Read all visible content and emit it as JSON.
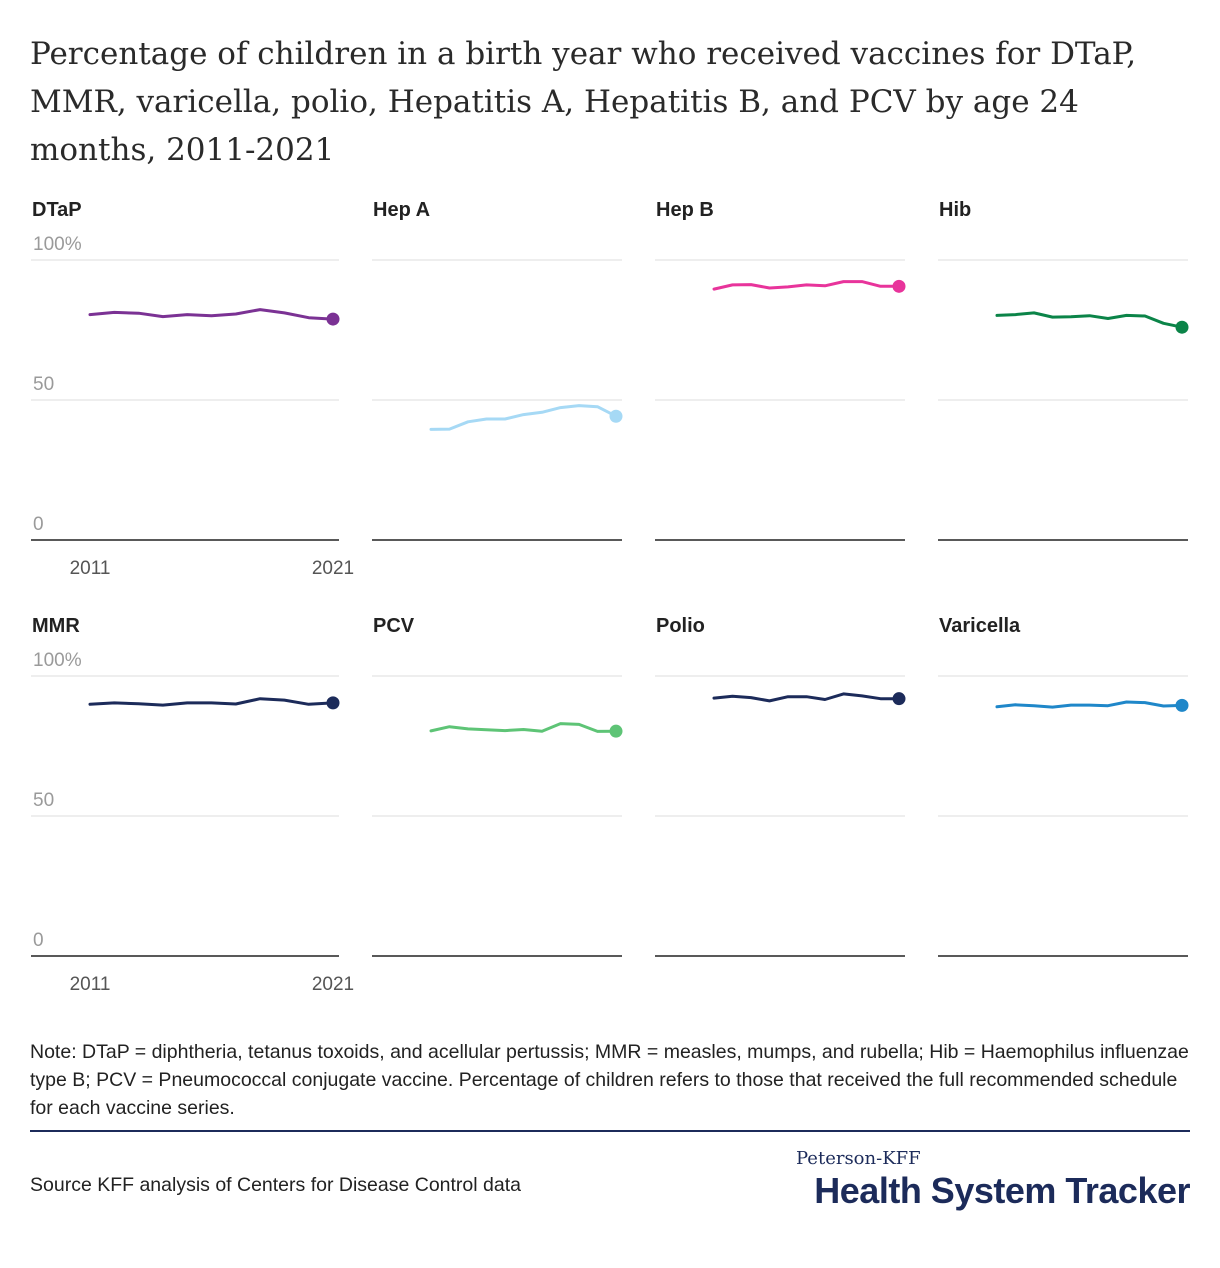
{
  "title": "Percentage of children in a birth year who received vaccines for DTaP, MMR, varicella, polio, Hepatitis A, Hepatitis B, and PCV by age 24 months, 2011-2021",
  "note": "Note: DTaP = diphtheria, tetanus toxoids, and acellular pertussis; MMR = measles, mumps, and rubella; Hib = Haemophilus influenzae type B; PCV = Pneumococcal conjugate vaccine. Percentage of children refers to those that received the full recommended schedule for each vaccine series.",
  "source": "Source KFF analysis of Centers for Disease Control data",
  "logo": {
    "top": "Peterson-KFF",
    "main": "Health System Tracker"
  },
  "chart_data": [
    {
      "type": "line",
      "title": "DTaP",
      "color": "#7b3294",
      "x": [
        2011,
        2012,
        2013,
        2014,
        2015,
        2016,
        2017,
        2018,
        2019,
        2020,
        2021
      ],
      "values": [
        80.5,
        81.3,
        81.0,
        79.8,
        80.5,
        80.1,
        80.7,
        82.3,
        81.1,
        79.4,
        78.9
      ],
      "ylim": [
        0,
        100
      ],
      "yticks": [
        "0",
        "50",
        "100%"
      ],
      "xticks": [
        "2011",
        "2021"
      ],
      "grid": true
    },
    {
      "type": "line",
      "title": "Hep A",
      "color": "#a6d9f5",
      "x": [
        2011,
        2012,
        2013,
        2014,
        2015,
        2016,
        2017,
        2018,
        2019,
        2020,
        2021
      ],
      "values": [
        39.5,
        39.6,
        42.2,
        43.2,
        43.2,
        44.8,
        45.6,
        47.3,
        48.0,
        47.6,
        44.2
      ],
      "ylim": [
        0,
        100
      ],
      "yticks": [
        "0",
        "50",
        "100%"
      ],
      "xticks": [
        "2011",
        "2021"
      ],
      "grid": true
    },
    {
      "type": "line",
      "title": "Hep B",
      "color": "#e8349b",
      "x": [
        2011,
        2012,
        2013,
        2014,
        2015,
        2016,
        2017,
        2018,
        2019,
        2020,
        2021
      ],
      "values": [
        89.6,
        91.1,
        91.2,
        90.0,
        90.4,
        91.1,
        90.8,
        92.3,
        92.3,
        90.6,
        90.6
      ],
      "ylim": [
        0,
        100
      ],
      "yticks": [
        "0",
        "50",
        "100%"
      ],
      "xticks": [
        "2011",
        "2021"
      ],
      "grid": true
    },
    {
      "type": "line",
      "title": "Hib",
      "color": "#0b8448",
      "x": [
        2011,
        2012,
        2013,
        2014,
        2015,
        2016,
        2017,
        2018,
        2019,
        2020,
        2021
      ],
      "values": [
        80.2,
        80.5,
        81.1,
        79.6,
        79.7,
        80.1,
        79.1,
        80.2,
        80.0,
        77.4,
        76.0
      ],
      "ylim": [
        0,
        100
      ],
      "yticks": [
        "0",
        "50",
        "100%"
      ],
      "xticks": [
        "2011",
        "2021"
      ],
      "grid": true
    },
    {
      "type": "line",
      "title": "MMR",
      "color": "#1c2b5a",
      "x": [
        2011,
        2012,
        2013,
        2014,
        2015,
        2016,
        2017,
        2018,
        2019,
        2020,
        2021
      ],
      "values": [
        89.9,
        90.4,
        90.1,
        89.6,
        90.4,
        90.4,
        90.0,
        91.9,
        91.4,
        89.9,
        90.4
      ],
      "ylim": [
        0,
        100
      ],
      "yticks": [
        "0",
        "50",
        "100%"
      ],
      "xticks": [
        "2011",
        "2021"
      ],
      "grid": true
    },
    {
      "type": "line",
      "title": "PCV",
      "color": "#5ec476",
      "x": [
        2011,
        2012,
        2013,
        2014,
        2015,
        2016,
        2017,
        2018,
        2019,
        2020,
        2021
      ],
      "values": [
        80.4,
        81.9,
        81.1,
        80.8,
        80.5,
        80.9,
        80.3,
        83.0,
        82.7,
        80.2,
        80.3
      ],
      "ylim": [
        0,
        100
      ],
      "yticks": [
        "0",
        "50",
        "100%"
      ],
      "xticks": [
        "2011",
        "2021"
      ],
      "grid": true
    },
    {
      "type": "line",
      "title": "Polio",
      "color": "#1c2b5a",
      "x": [
        2011,
        2012,
        2013,
        2014,
        2015,
        2016,
        2017,
        2018,
        2019,
        2020,
        2021
      ],
      "values": [
        92.1,
        92.8,
        92.3,
        91.1,
        92.6,
        92.6,
        91.6,
        93.6,
        92.9,
        91.9,
        91.9
      ],
      "ylim": [
        0,
        100
      ],
      "yticks": [
        "0",
        "50",
        "100%"
      ],
      "xticks": [
        "2011",
        "2021"
      ],
      "grid": true
    },
    {
      "type": "line",
      "title": "Varicella",
      "color": "#1f87c9",
      "x": [
        2011,
        2012,
        2013,
        2014,
        2015,
        2016,
        2017,
        2018,
        2019,
        2020,
        2021
      ],
      "values": [
        89.0,
        89.7,
        89.4,
        88.9,
        89.6,
        89.6,
        89.4,
        90.7,
        90.5,
        89.3,
        89.5
      ],
      "ylim": [
        0,
        100
      ],
      "yticks": [
        "0",
        "50",
        "100%"
      ],
      "xticks": [
        "2011",
        "2021"
      ],
      "grid": true
    }
  ]
}
